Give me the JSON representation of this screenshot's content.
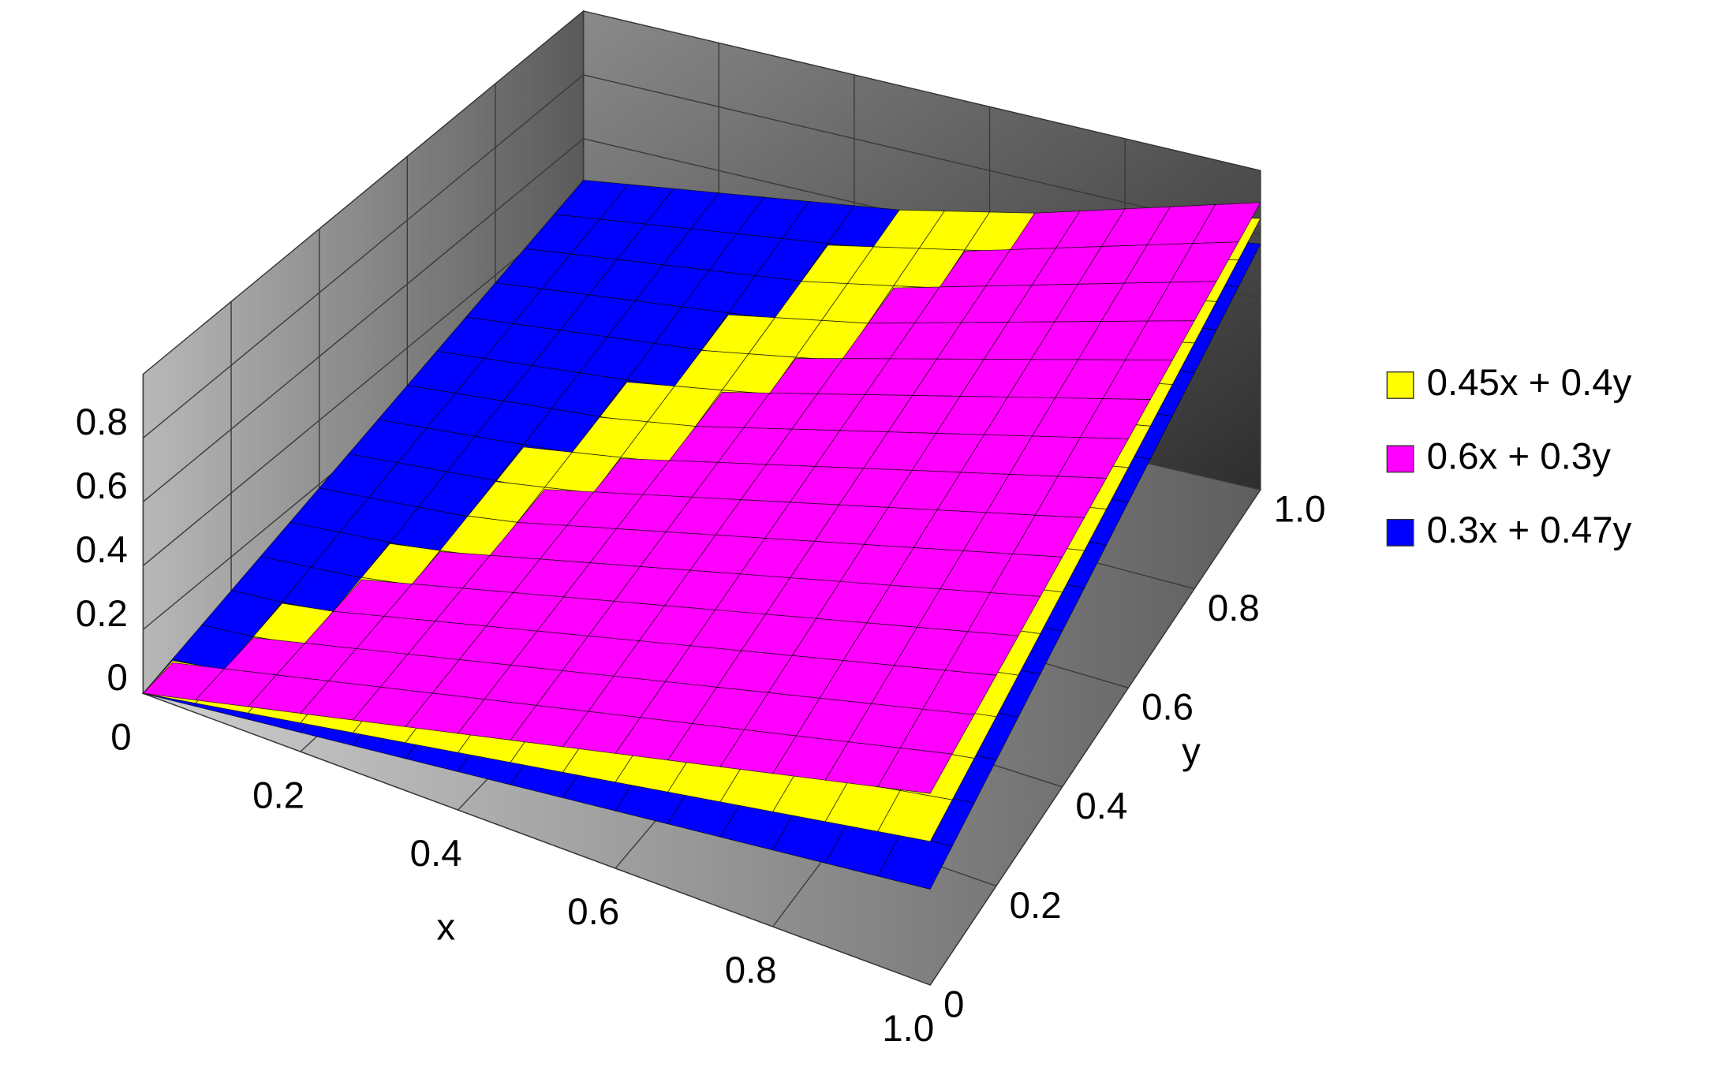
{
  "chart_data": {
    "type": "surface3d",
    "x": [
      0,
      1
    ],
    "y": [
      0,
      1
    ],
    "series": [
      {
        "name": "0.45x + 0.4y",
        "color": "#ffff00",
        "values": [
          [
            0,
            0.4
          ],
          [
            0.45,
            0.85
          ]
        ]
      },
      {
        "name": "0.6x + 0.3y",
        "color": "#ff00ff",
        "values": [
          [
            0,
            0.3
          ],
          [
            0.6,
            0.9
          ]
        ]
      },
      {
        "name": "0.3x + 0.47y",
        "color": "#0000ff",
        "values": [
          [
            0,
            0.47
          ],
          [
            0.3,
            0.77
          ]
        ]
      }
    ],
    "xlim": [
      0,
      1
    ],
    "ylim": [
      0,
      1
    ],
    "zlim": [
      0,
      1
    ],
    "xticks": [
      0,
      0.2,
      0.4,
      0.6,
      0.8,
      {
        "value": 1,
        "label": "1.0"
      }
    ],
    "yticks": [
      0,
      0.2,
      0.4,
      0.6,
      0.8,
      {
        "value": 1,
        "label": "1.0"
      }
    ],
    "zticks": [
      0,
      0.2,
      0.4,
      0.6,
      0.8
    ],
    "xlabel": "x",
    "ylabel": "y",
    "grid": true,
    "legend": "right"
  }
}
